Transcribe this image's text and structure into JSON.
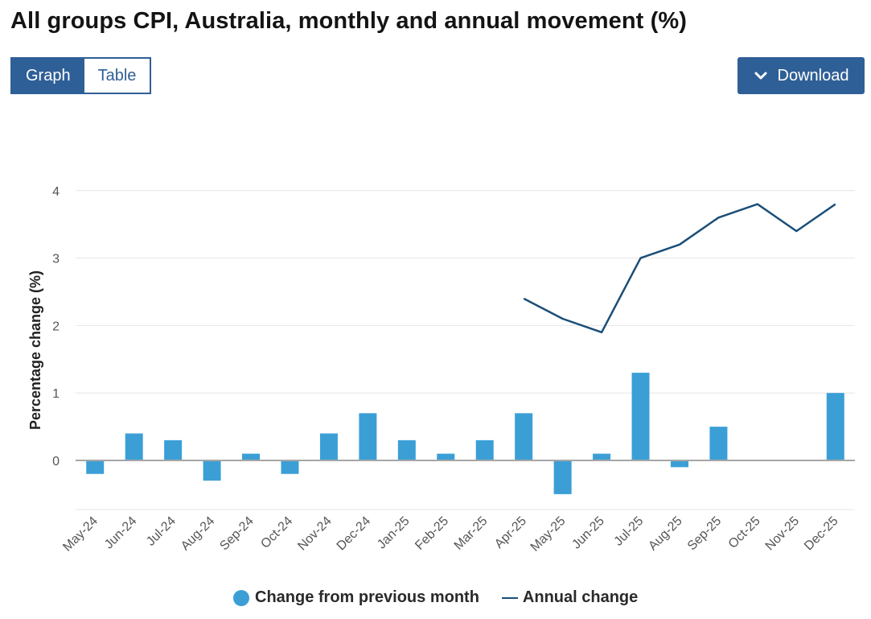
{
  "header": {
    "title": "All groups CPI, Australia, monthly and annual movement (%)"
  },
  "view_toggle": {
    "graph_label": "Graph",
    "table_label": "Table",
    "selected": "Graph"
  },
  "download": {
    "label": "Download",
    "icon": "chevron-down-icon"
  },
  "legend": {
    "bar_label": "Change from previous month",
    "line_label": "Annual change"
  },
  "colors": {
    "accent": "#2f5f97",
    "bar": "#3b9fd6",
    "line": "#1b4e78",
    "zero_line": "#a6a6a6",
    "grid": "#e6e6e6"
  },
  "chart_data": {
    "type": "bar",
    "title": "All groups CPI, Australia, monthly and annual movement (%)",
    "ylabel": "Percentage change (%)",
    "xlabel": "",
    "ylim": [
      -0.7,
      4.3
    ],
    "yticks": [
      0,
      1,
      2,
      3,
      4
    ],
    "grid": true,
    "legend_position": "bottom",
    "categories": [
      "May-24",
      "Jun-24",
      "Jul-24",
      "Aug-24",
      "Sep-24",
      "Oct-24",
      "Nov-24",
      "Dec-24",
      "Jan-25",
      "Feb-25",
      "Mar-25",
      "Apr-25",
      "May-25",
      "Jun-25",
      "Jul-25",
      "Aug-25",
      "Sep-25",
      "Oct-25",
      "Nov-25",
      "Dec-25"
    ],
    "series": [
      {
        "name": "Change from previous month",
        "type": "bar",
        "values": [
          -0.2,
          0.4,
          0.3,
          -0.3,
          0.1,
          -0.2,
          0.4,
          0.7,
          0.3,
          0.1,
          0.3,
          0.7,
          -0.5,
          0.1,
          1.3,
          -0.1,
          0.5,
          0.0,
          0.0,
          1.0
        ]
      },
      {
        "name": "Annual change",
        "type": "line",
        "values": [
          null,
          null,
          null,
          null,
          null,
          null,
          null,
          null,
          null,
          null,
          null,
          2.4,
          2.1,
          1.9,
          3.0,
          3.2,
          3.6,
          3.8,
          3.4,
          3.8
        ]
      }
    ]
  }
}
